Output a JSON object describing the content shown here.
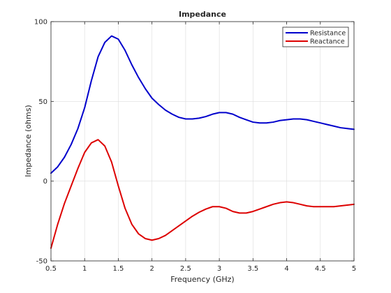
{
  "chart_data": {
    "type": "line",
    "title": "Impedance",
    "xlabel": "Frequency (GHz)",
    "ylabel": "Impedance (ohms)",
    "xlim": [
      0.5,
      5
    ],
    "ylim": [
      -50,
      100
    ],
    "xticks": [
      "0.5",
      "1",
      "1.5",
      "2",
      "2.5",
      "3",
      "3.5",
      "4",
      "4.5",
      "5"
    ],
    "yticks": [
      "-50",
      "0",
      "50",
      "100"
    ],
    "grid": true,
    "legend_position": "top-right",
    "x": [
      0.5,
      0.6,
      0.7,
      0.8,
      0.9,
      1.0,
      1.1,
      1.2,
      1.3,
      1.4,
      1.5,
      1.6,
      1.7,
      1.8,
      1.9,
      2.0,
      2.1,
      2.2,
      2.3,
      2.4,
      2.5,
      2.6,
      2.7,
      2.8,
      2.9,
      3.0,
      3.1,
      3.2,
      3.3,
      3.4,
      3.5,
      3.6,
      3.7,
      3.8,
      3.9,
      4.0,
      4.1,
      4.2,
      4.3,
      4.4,
      4.5,
      4.6,
      4.7,
      4.8,
      4.9,
      5.0
    ],
    "series": [
      {
        "name": "Resistance",
        "color": "#0000CC",
        "values": [
          5,
          9,
          15,
          23,
          33,
          46,
          63,
          78,
          87,
          91,
          89,
          82,
          73,
          65,
          58,
          52,
          48,
          44.5,
          42,
          40,
          39,
          39,
          39.5,
          40.5,
          42,
          43,
          43,
          42,
          40,
          38.5,
          37,
          36.5,
          36.5,
          37,
          38,
          38.5,
          39,
          39,
          38.5,
          37.5,
          36.5,
          35.5,
          34.5,
          33.5,
          33,
          32.5
        ]
      },
      {
        "name": "Reactance",
        "color": "#DD0000",
        "values": [
          -42,
          -27,
          -14,
          -3,
          8,
          18,
          24,
          26,
          22,
          12,
          -3,
          -17,
          -27,
          -33,
          -36,
          -37,
          -36,
          -34,
          -31,
          -28,
          -25,
          -22,
          -19.5,
          -17.5,
          -16,
          -16,
          -17,
          -19,
          -20,
          -20,
          -19,
          -17.5,
          -16,
          -14.5,
          -13.5,
          -13,
          -13.5,
          -14.5,
          -15.5,
          -16,
          -16,
          -16,
          -16,
          -15.5,
          -15,
          -14.5
        ]
      }
    ]
  }
}
